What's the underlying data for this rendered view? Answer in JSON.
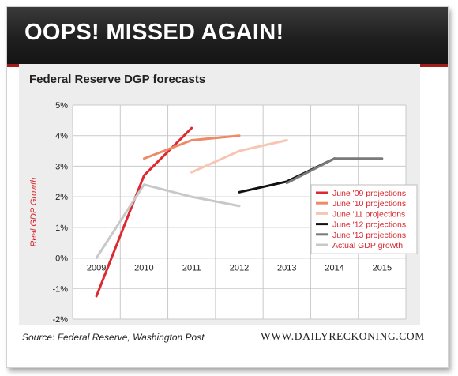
{
  "banner": {
    "title": "OOPS! MISSED AGAIN!"
  },
  "footer": {
    "source": "Source: Federal Reserve, Washington Post",
    "site": "WWW.DAILYRECKONING.COM"
  },
  "colors": {
    "banner_bg": "#1c1c1c",
    "banner_border": "#a41c1c",
    "panel_bg": "#ededed",
    "ylabel": "#d9262c"
  },
  "chart_data": {
    "type": "line",
    "title": "Federal Reserve DGP forecasts",
    "xlabel": "",
    "ylabel": "Real GDP Growth",
    "x": [
      2009,
      2010,
      2011,
      2012,
      2013,
      2014,
      2015
    ],
    "x_tick_labels": [
      "2009",
      "2010",
      "2011",
      "2012",
      "2013",
      "2014",
      "2015"
    ],
    "ylim": [
      -2,
      5
    ],
    "y_ticks": [
      -2,
      -1,
      0,
      1,
      2,
      3,
      4,
      5
    ],
    "y_tick_labels": [
      "-2%",
      "-1%",
      "0%",
      "1%",
      "2%",
      "3%",
      "4%",
      "5%"
    ],
    "grid": true,
    "legend_position": "bottom-right",
    "series": [
      {
        "name": "June '09 projections",
        "color": "#dd2a30",
        "x": [
          2009,
          2010,
          2011
        ],
        "values": [
          -1.25,
          2.7,
          4.25
        ]
      },
      {
        "name": "June '10 projections",
        "color": "#ee8a66",
        "x": [
          2010,
          2011,
          2012
        ],
        "values": [
          3.25,
          3.85,
          4.0
        ]
      },
      {
        "name": "June '11 projections",
        "color": "#f6c6b3",
        "x": [
          2011,
          2012,
          2013
        ],
        "values": [
          2.8,
          3.5,
          3.85
        ]
      },
      {
        "name": "June '12 projections",
        "color": "#111111",
        "x": [
          2012,
          2013,
          2014
        ],
        "values": [
          2.15,
          2.5,
          3.25
        ]
      },
      {
        "name": "June '13 projections",
        "color": "#7a7a7a",
        "x": [
          2013,
          2014,
          2015
        ],
        "values": [
          2.45,
          3.25,
          3.25
        ]
      },
      {
        "name": "Actual GDP growth",
        "color": "#c8c8c8",
        "x": [
          2009,
          2010,
          2011,
          2012
        ],
        "values": [
          0.0,
          2.4,
          2.0,
          1.7
        ]
      }
    ]
  }
}
